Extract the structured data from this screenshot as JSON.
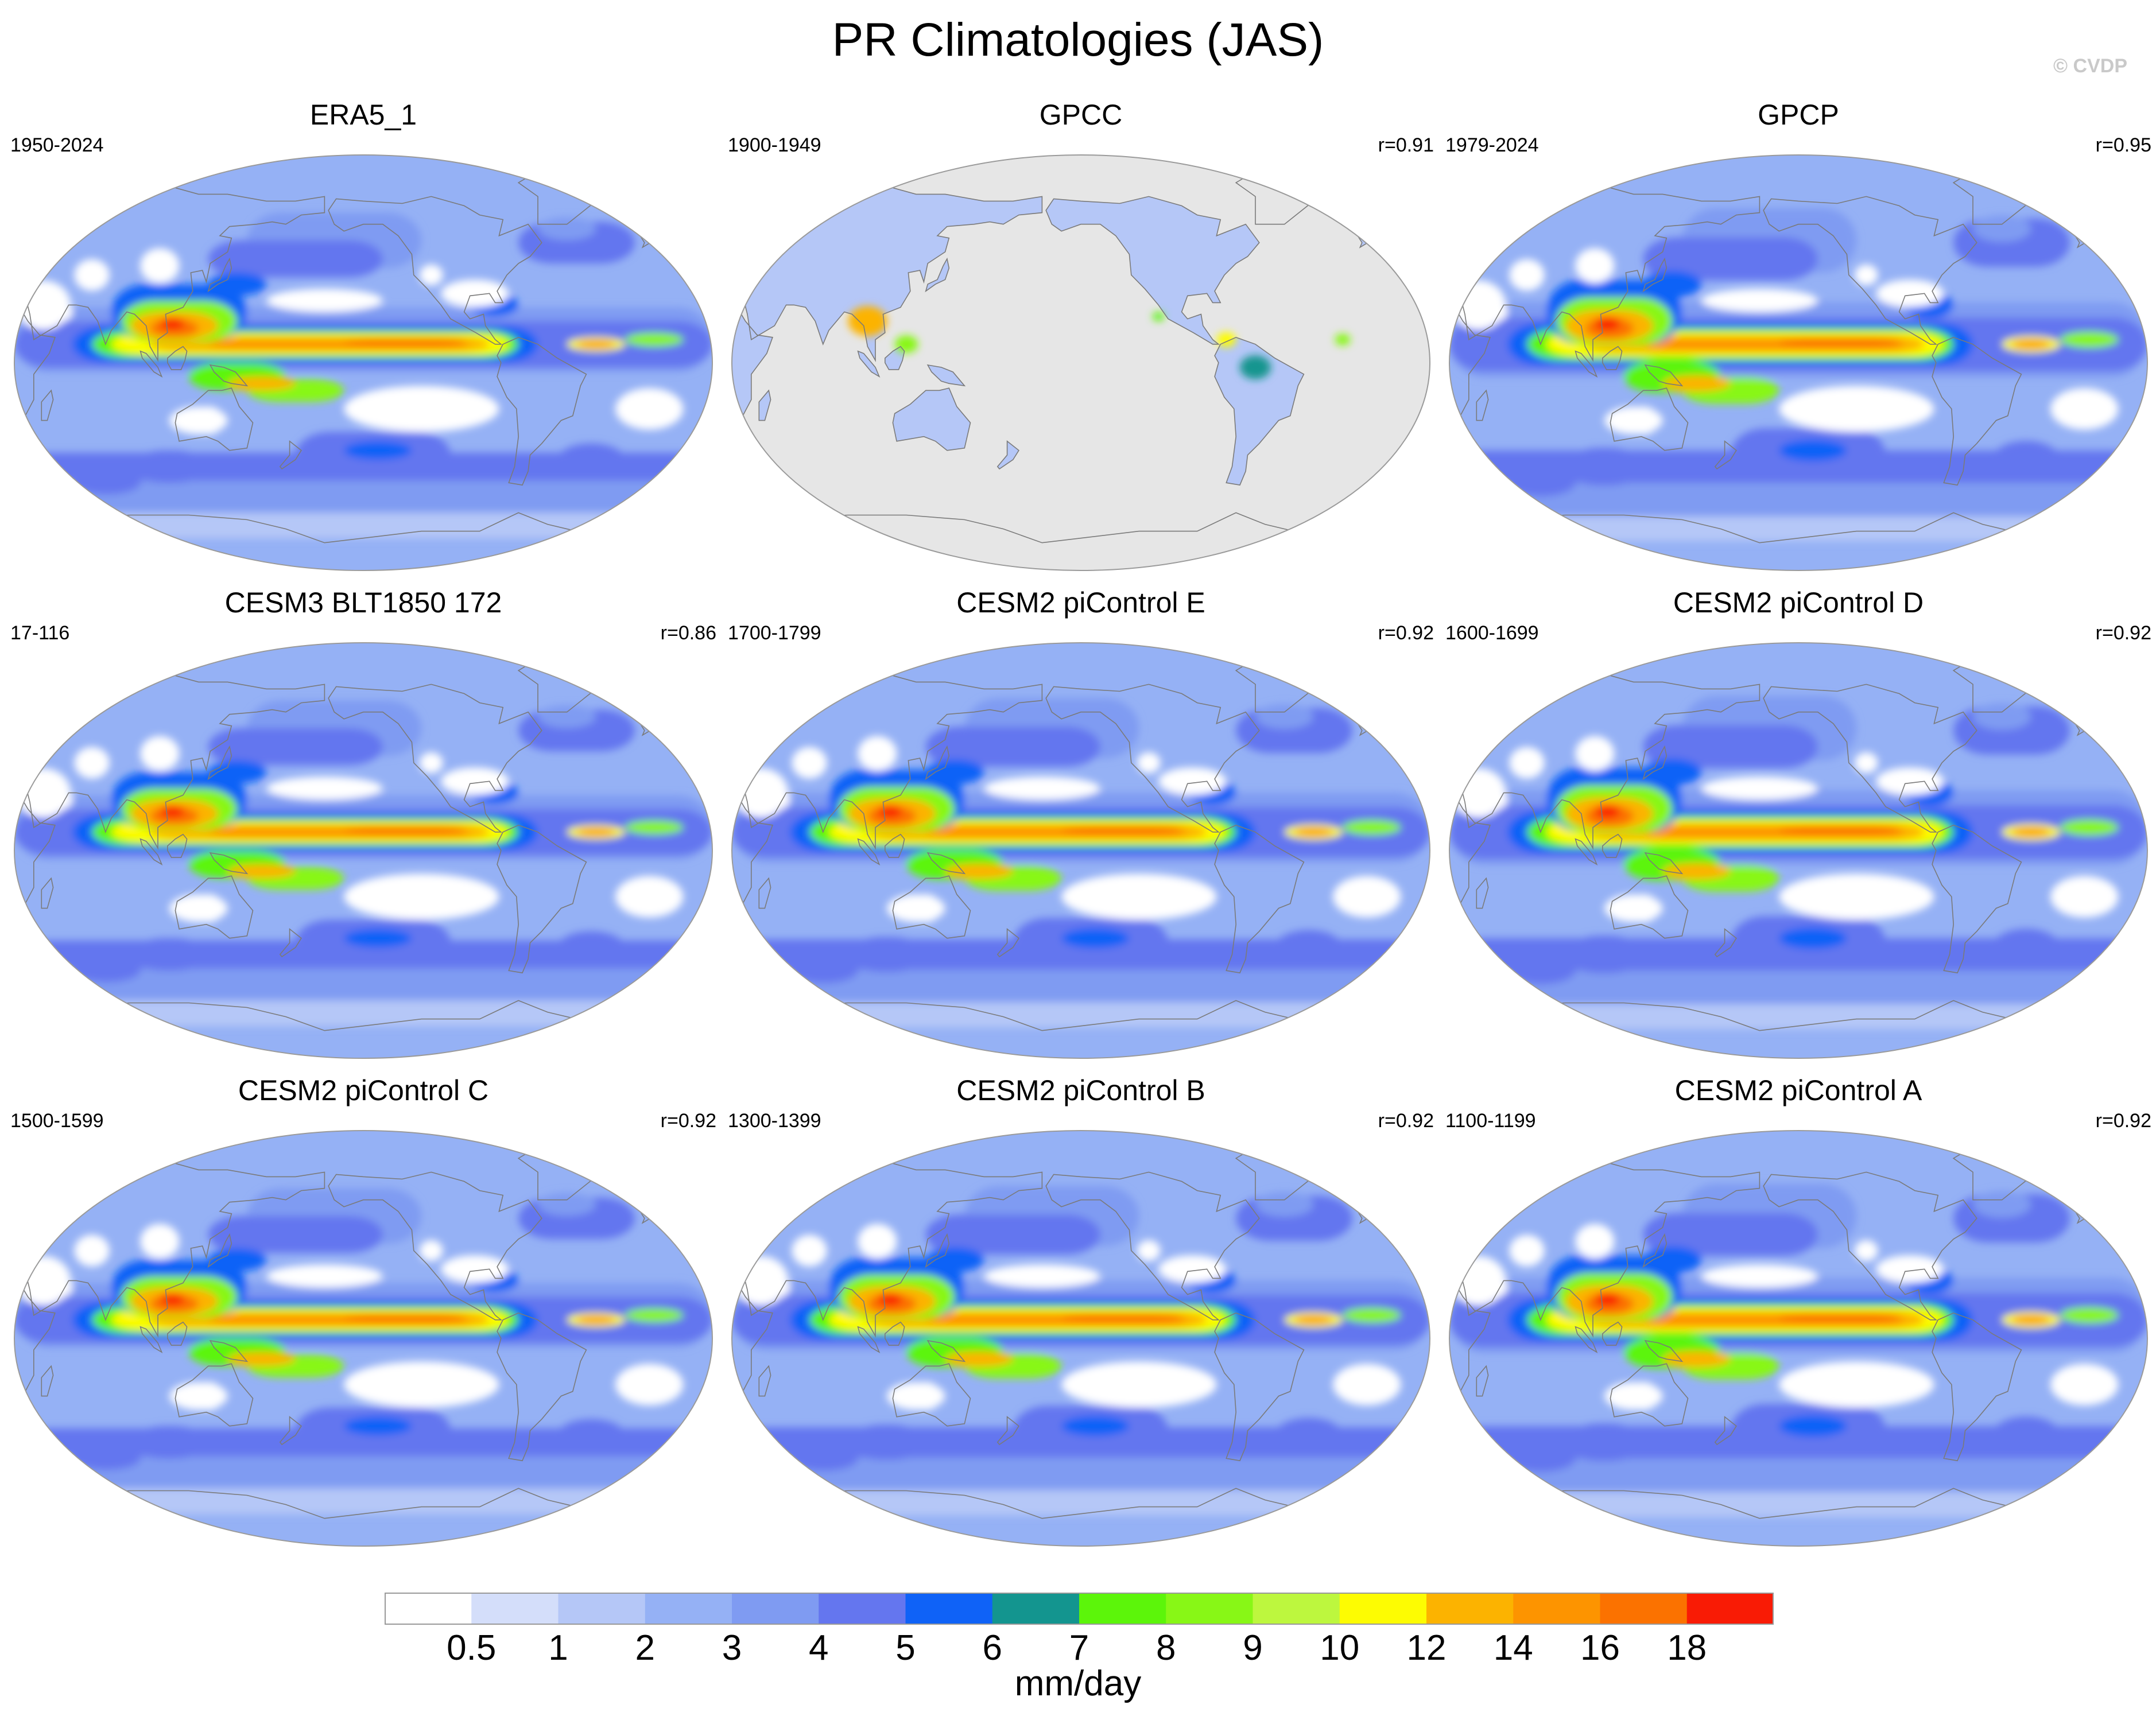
{
  "title": "PR Climatologies (JAS)",
  "watermark": "© CVDP",
  "panels": [
    {
      "title": "ERA5_1",
      "years": "1950-2024",
      "r": "",
      "type": "reanalysis"
    },
    {
      "title": "GPCC",
      "years": "1900-1949",
      "r": "r=0.91",
      "type": "land"
    },
    {
      "title": "GPCP",
      "years": "1979-2024",
      "r": "r=0.95",
      "type": "obs"
    },
    {
      "title": "CESM3 BLT1850 172",
      "years": "17-116",
      "r": "r=0.86",
      "type": "model"
    },
    {
      "title": "CESM2 piControl E",
      "years": "1700-1799",
      "r": "r=0.92",
      "type": "model"
    },
    {
      "title": "CESM2 piControl D",
      "years": "1600-1699",
      "r": "r=0.92",
      "type": "model"
    },
    {
      "title": "CESM2 piControl C",
      "years": "1500-1599",
      "r": "r=0.92",
      "type": "model"
    },
    {
      "title": "CESM2 piControl B",
      "years": "1300-1399",
      "r": "r=0.92",
      "type": "model"
    },
    {
      "title": "CESM2 piControl A",
      "years": "1100-1199",
      "r": "r=0.92",
      "type": "model"
    }
  ],
  "colorbar": {
    "units": "mm/day",
    "ticks": [
      "0.5",
      "1",
      "2",
      "3",
      "4",
      "5",
      "6",
      "7",
      "8",
      "9",
      "10",
      "12",
      "14",
      "16",
      "18"
    ],
    "colors": [
      "#ffffff",
      "#d4defa",
      "#b5c7f7",
      "#95b1f5",
      "#7f9bf2",
      "#6476ef",
      "#0f62f7",
      "#13958f",
      "#5cf50a",
      "#88f716",
      "#bdf73e",
      "#fdfc02",
      "#fcb300",
      "#fd9400",
      "#fb7200",
      "#f91b05"
    ]
  },
  "land_color": "#e6e6e6",
  "coast_color": "#7a7a7a"
}
